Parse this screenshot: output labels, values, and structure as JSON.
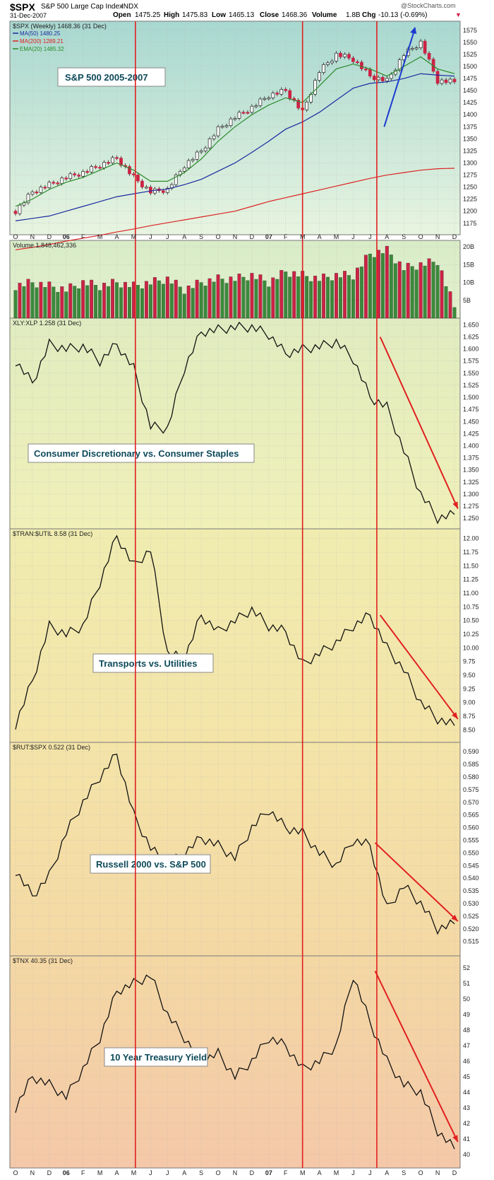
{
  "header": {
    "symbol": "$SPX",
    "name": "S&P 500 Large Cap Index",
    "exchange": "INDX",
    "date": "31-Dec-2007",
    "watermark": "@StockCharts.com",
    "open_label": "Open",
    "open": "1475.25",
    "high_label": "High",
    "high": "1475.83",
    "low_label": "Low",
    "low": "1465.13",
    "close_label": "Close",
    "close": "1468.36",
    "volume_label": "Volume",
    "volume": "1.8B",
    "chg_label": "Chg",
    "chg": "-10.13 (-0.69%)"
  },
  "colors": {
    "up": "#3a8a3a",
    "down": "#cc2244",
    "ma50": "#1a2aa0",
    "ma200": "#dd2222",
    "ema20": "#2a8a2a",
    "arrow": "#e02020",
    "blue_arrow": "#1a3ad0",
    "vline": "#e02020"
  },
  "x_axis": {
    "labels": [
      "O",
      "N",
      "D",
      "06",
      "F",
      "M",
      "A",
      "M",
      "J",
      "J",
      "A",
      "S",
      "O",
      "N",
      "D",
      "07",
      "F",
      "M",
      "A",
      "M",
      "J",
      "J",
      "A",
      "S",
      "O",
      "N",
      "D"
    ]
  },
  "chart_data": [
    {
      "id": "spx",
      "type": "candlestick",
      "title": "$SPX (Weekly) 1468.36 (31 Dec)",
      "annotation": "S&P 500 2005-2007",
      "legend": [
        "MA(50) 1480.25",
        "MA(200) 1289.21",
        "EMA(20) 1485.32"
      ],
      "yticks": [
        1175,
        1200,
        1225,
        1250,
        1275,
        1300,
        1325,
        1350,
        1375,
        1400,
        1425,
        1450,
        1475,
        1500,
        1525,
        1550,
        1575
      ],
      "ylim": [
        1160,
        1585
      ],
      "x": [
        "2005-10",
        "2005-11",
        "2005-12",
        "2006-01",
        "2006-02",
        "2006-03",
        "2006-04",
        "2006-05",
        "2006-06",
        "2006-07",
        "2006-08",
        "2006-09",
        "2006-10",
        "2006-11",
        "2006-12",
        "2007-01",
        "2007-02",
        "2007-03",
        "2007-04",
        "2007-05",
        "2007-06",
        "2007-07",
        "2007-08",
        "2007-09",
        "2007-10",
        "2007-11",
        "2007-12"
      ],
      "close": [
        1200,
        1240,
        1255,
        1270,
        1280,
        1295,
        1310,
        1270,
        1240,
        1245,
        1295,
        1325,
        1370,
        1395,
        1415,
        1440,
        1450,
        1405,
        1490,
        1525,
        1515,
        1480,
        1470,
        1525,
        1550,
        1470,
        1468
      ],
      "ma50": [
        1180,
        1185,
        1190,
        1200,
        1210,
        1220,
        1230,
        1236,
        1242,
        1246,
        1255,
        1266,
        1283,
        1300,
        1322,
        1345,
        1370,
        1385,
        1405,
        1430,
        1455,
        1465,
        1468,
        1475,
        1485,
        1482,
        1480
      ],
      "ma200": [
        1120,
        1125,
        1131,
        1138,
        1144,
        1150,
        1157,
        1163,
        1170,
        1176,
        1182,
        1188,
        1194,
        1200,
        1210,
        1220,
        1228,
        1236,
        1244,
        1252,
        1260,
        1268,
        1275,
        1280,
        1285,
        1288,
        1289
      ],
      "ema20": [
        1210,
        1225,
        1245,
        1260,
        1270,
        1285,
        1300,
        1285,
        1262,
        1262,
        1280,
        1308,
        1345,
        1375,
        1400,
        1420,
        1435,
        1425,
        1460,
        1495,
        1505,
        1495,
        1480,
        1500,
        1520,
        1495,
        1485
      ]
    },
    {
      "id": "volume",
      "type": "bar",
      "title": "Volume 1,848,462,336",
      "yticks": [
        "5B",
        "10B",
        "15B",
        "20B"
      ],
      "ylim": [
        0,
        21
      ],
      "values": [
        9,
        10,
        9,
        8,
        10,
        9,
        10,
        9,
        10,
        11,
        8,
        10,
        11,
        11,
        12,
        10,
        13,
        12,
        11,
        12,
        12,
        18,
        19,
        14,
        15,
        16,
        3
      ]
    },
    {
      "id": "xly_xlp",
      "type": "line",
      "title": "XLY:XLP 1.258 (31 Dec)",
      "annotation": "Consumer Discretionary vs. Consumer Staples",
      "yticks": [
        1.25,
        1.275,
        1.3,
        1.325,
        1.35,
        1.375,
        1.4,
        1.425,
        1.45,
        1.475,
        1.5,
        1.525,
        1.55,
        1.575,
        1.6,
        1.625,
        1.65
      ],
      "ylim": [
        1.237,
        1.655
      ],
      "x": [
        "2005-10",
        "2005-11",
        "2005-12",
        "2006-01",
        "2006-02",
        "2006-03",
        "2006-04",
        "2006-05",
        "2006-06",
        "2006-07",
        "2006-08",
        "2006-09",
        "2006-10",
        "2006-11",
        "2006-12",
        "2007-01",
        "2007-02",
        "2007-03",
        "2007-04",
        "2007-05",
        "2007-06",
        "2007-07",
        "2007-08",
        "2007-09",
        "2007-10",
        "2007-11",
        "2007-12"
      ],
      "values": [
        1.575,
        1.53,
        1.61,
        1.6,
        1.605,
        1.575,
        1.61,
        1.56,
        1.44,
        1.435,
        1.56,
        1.635,
        1.64,
        1.645,
        1.645,
        1.63,
        1.59,
        1.6,
        1.605,
        1.615,
        1.58,
        1.5,
        1.48,
        1.39,
        1.3,
        1.25,
        1.258
      ]
    },
    {
      "id": "tran_util",
      "type": "line",
      "title": "$TRAN:$UTIL 8.58 (31 Dec)",
      "annotation": "Transports vs. Utilities",
      "yticks": [
        8.5,
        8.75,
        9.0,
        9.25,
        9.5,
        9.75,
        10.0,
        10.25,
        10.5,
        10.75,
        11.0,
        11.25,
        11.5,
        11.75,
        12.0
      ],
      "ylim": [
        8.35,
        12.1
      ],
      "x": [
        "2005-10",
        "2005-11",
        "2005-12",
        "2006-01",
        "2006-02",
        "2006-03",
        "2006-04",
        "2006-05",
        "2006-06",
        "2006-07",
        "2006-08",
        "2006-09",
        "2006-10",
        "2006-11",
        "2006-12",
        "2007-01",
        "2007-02",
        "2007-03",
        "2007-04",
        "2007-05",
        "2007-06",
        "2007-07",
        "2007-08",
        "2007-09",
        "2007-10",
        "2007-11",
        "2007-12"
      ],
      "values": [
        8.6,
        9.4,
        10.4,
        10.25,
        10.4,
        11.2,
        12.05,
        11.5,
        11.8,
        9.9,
        9.8,
        10.6,
        10.3,
        10.5,
        10.7,
        10.4,
        10.3,
        9.7,
        9.9,
        10.1,
        10.4,
        10.6,
        10.0,
        9.6,
        9.0,
        8.7,
        8.58
      ]
    },
    {
      "id": "rut_spx",
      "type": "line",
      "title": "$RUT:$SPX 0.522 (31 Dec)",
      "annotation": "Russell 2000 vs. S&P 500",
      "yticks": [
        0.515,
        0.52,
        0.525,
        0.53,
        0.535,
        0.54,
        0.545,
        0.55,
        0.555,
        0.56,
        0.565,
        0.57,
        0.575,
        0.58,
        0.585,
        0.59
      ],
      "ylim": [
        0.511,
        0.592
      ],
      "x": [
        "2005-10",
        "2005-11",
        "2005-12",
        "2006-01",
        "2006-02",
        "2006-03",
        "2006-04",
        "2006-05",
        "2006-06",
        "2006-07",
        "2006-08",
        "2006-09",
        "2006-10",
        "2006-11",
        "2006-12",
        "2007-01",
        "2007-02",
        "2007-03",
        "2007-04",
        "2007-05",
        "2007-06",
        "2007-07",
        "2007-08",
        "2007-09",
        "2007-10",
        "2007-11",
        "2007-12"
      ],
      "values": [
        0.543,
        0.533,
        0.541,
        0.558,
        0.57,
        0.58,
        0.589,
        0.565,
        0.552,
        0.545,
        0.55,
        0.556,
        0.553,
        0.548,
        0.56,
        0.567,
        0.56,
        0.558,
        0.55,
        0.545,
        0.555,
        0.553,
        0.528,
        0.537,
        0.53,
        0.52,
        0.522
      ]
    },
    {
      "id": "tnx",
      "type": "line",
      "title": "$TNX 40.35 (31 Dec)",
      "annotation": "10 Year Treasury Yield",
      "yticks": [
        40,
        41,
        42,
        43,
        44,
        45,
        46,
        47,
        48,
        49,
        50,
        51,
        52
      ],
      "ylim": [
        39.4,
        52.5
      ],
      "x": [
        "2005-10",
        "2005-11",
        "2005-12",
        "2006-01",
        "2006-02",
        "2006-03",
        "2006-04",
        "2006-05",
        "2006-06",
        "2006-07",
        "2006-08",
        "2006-09",
        "2006-10",
        "2006-11",
        "2006-12",
        "2007-01",
        "2007-02",
        "2007-03",
        "2007-04",
        "2007-05",
        "2007-06",
        "2007-07",
        "2007-08",
        "2007-09",
        "2007-10",
        "2007-11",
        "2007-12"
      ],
      "values": [
        43.0,
        45.0,
        44.5,
        43.7,
        45.5,
        47.5,
        50.5,
        51.0,
        51.5,
        49.0,
        47.5,
        46.0,
        46.5,
        45.0,
        46.0,
        47.5,
        47.0,
        45.5,
        46.0,
        47.0,
        51.5,
        48.5,
        46.0,
        44.5,
        44.0,
        41.5,
        40.35
      ]
    }
  ]
}
